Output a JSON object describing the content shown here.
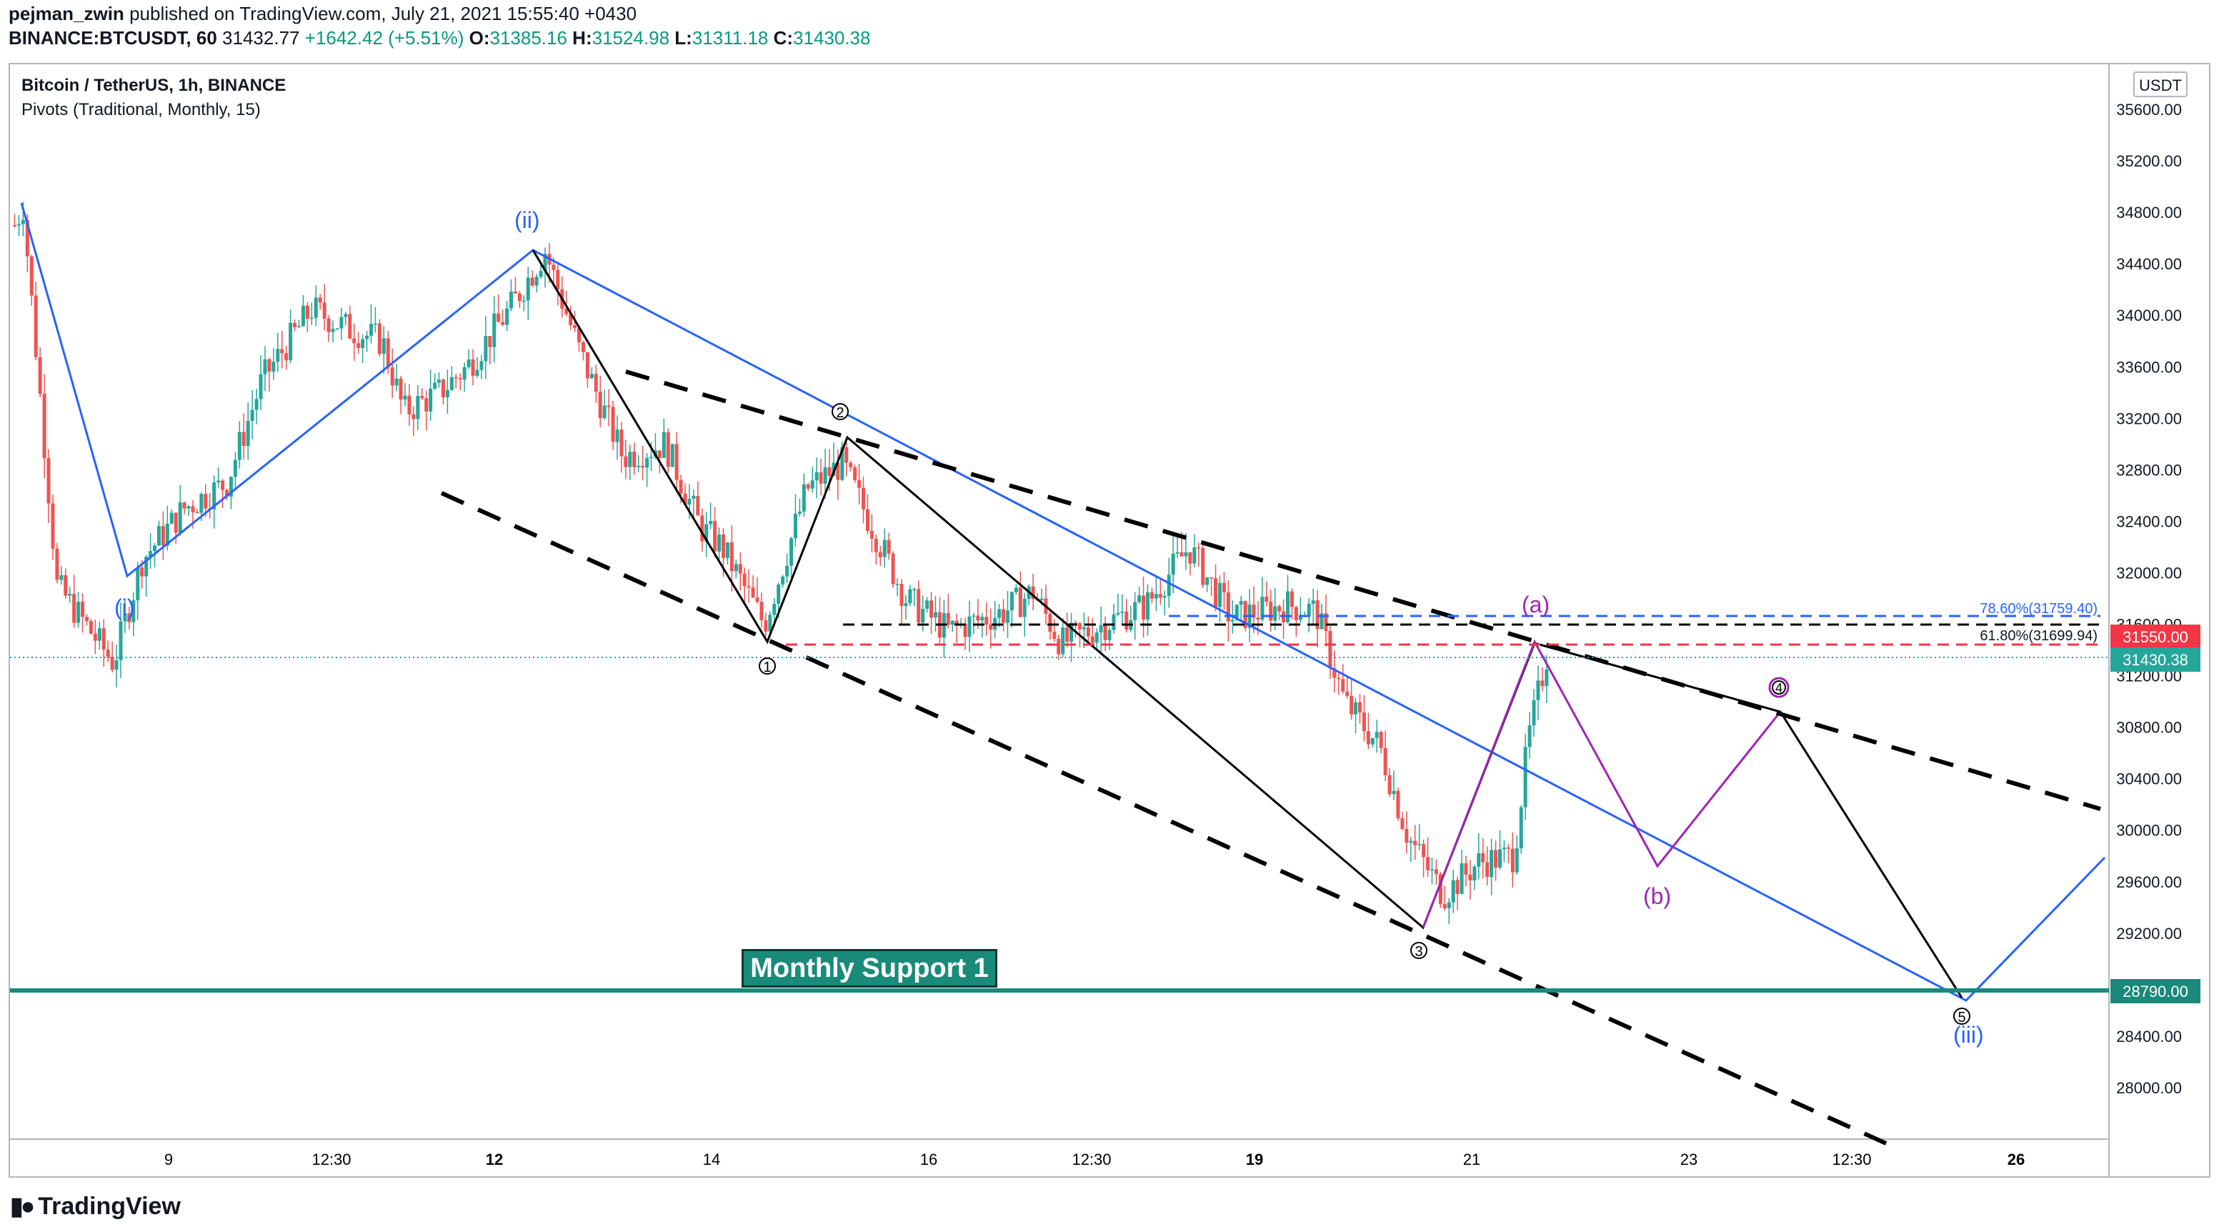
{
  "header": {
    "author": "pejman_zwin",
    "published_text": "published on TradingView.com, July 21, 2021 15:55:40 +0430",
    "symbol": "BINANCE:BTCUSDT, 60",
    "last": "31432.77",
    "change": "+1642.42 (+5.51%)",
    "o_label": "O:",
    "o_value": "31385.16",
    "h_label": "H:",
    "h_value": "31524.98",
    "l_label": "L:",
    "l_value": "31311.18",
    "c_label": "C:",
    "c_value": "31430.38"
  },
  "legend": {
    "title": "Bitcoin / TetherUS, 1h, BINANCE",
    "indicator": "Pivots (Traditional, Monthly, 15)"
  },
  "currency_badge": "USDT",
  "support_label": "Monthly Support 1",
  "wave_labels": {
    "i": "(i)",
    "ii": "(ii)",
    "iii": "(iii)",
    "a": "(a)",
    "b": "(b)",
    "w1": "1",
    "w2": "2",
    "w3": "3",
    "w4": "4",
    "w5": "5"
  },
  "fib_levels": {
    "f786": "78.60%(31759.40)",
    "f618": "61.80%(31699.94)"
  },
  "price_tags": {
    "pivot_level": "31550.00",
    "last_price": "31430.38",
    "support_level": "28790.00"
  },
  "colors": {
    "up": "#26a69a",
    "down": "#ef5350",
    "wave_blue": "#2962ff",
    "wave_purple": "#9c27b0",
    "support": "#1a8a7a"
  },
  "footer": {
    "brand": "TradingView"
  },
  "chart_data": {
    "type": "candlestick",
    "y_axis_ticks": [
      35600,
      35200,
      34800,
      34400,
      34000,
      33600,
      33200,
      32800,
      32400,
      32000,
      31600,
      31200,
      30800,
      30400,
      30000,
      29600,
      29200,
      28800,
      28400,
      28000
    ],
    "y_axis_labels": [
      "35600.00",
      "35200.00",
      "34800.00",
      "34400.00",
      "34000.00",
      "33600.00",
      "33200.00",
      "32800.00",
      "32400.00",
      "32000.00",
      "31600.00",
      "31200.00",
      "30800.00",
      "30400.00",
      "30000.00",
      "29600.00",
      "29200.00",
      "28800.00",
      "28400.00",
      "28000.00"
    ],
    "x_axis_labels": [
      "9",
      "12:30",
      "12",
      "14",
      "16",
      "12:30",
      "19",
      "21",
      "23",
      "12:30",
      "26"
    ],
    "x_axis_bold": [
      false,
      false,
      true,
      false,
      false,
      false,
      true,
      false,
      false,
      false,
      true
    ],
    "ylim": [
      27600,
      35950
    ],
    "key_levels": {
      "fib_786": 31759.4,
      "fib_618": 31699.94,
      "pivot_line": 31550.0,
      "last_price": 31430.38,
      "monthly_support_1": 28790.0
    },
    "candle_path": [
      [
        0,
        34700
      ],
      [
        6,
        34850
      ],
      [
        30,
        31900
      ],
      [
        70,
        31300
      ],
      [
        90,
        32100
      ],
      [
        120,
        32500
      ],
      [
        150,
        32700
      ],
      [
        175,
        33500
      ],
      [
        210,
        34050
      ],
      [
        235,
        33900
      ],
      [
        260,
        33800
      ],
      [
        275,
        33250
      ],
      [
        300,
        33400
      ],
      [
        320,
        33600
      ],
      [
        350,
        34050
      ],
      [
        375,
        34500
      ],
      [
        400,
        33700
      ],
      [
        430,
        32900
      ],
      [
        460,
        33000
      ],
      [
        485,
        32350
      ],
      [
        500,
        32200
      ],
      [
        530,
        31600
      ],
      [
        560,
        32650
      ],
      [
        585,
        32850
      ],
      [
        600,
        32500
      ],
      [
        630,
        31800
      ],
      [
        660,
        31550
      ],
      [
        700,
        31700
      ],
      [
        720,
        31850
      ],
      [
        740,
        31450
      ],
      [
        770,
        31600
      ],
      [
        800,
        31750
      ],
      [
        830,
        32200
      ],
      [
        860,
        31650
      ],
      [
        880,
        31700
      ],
      [
        900,
        31750
      ],
      [
        920,
        31700
      ],
      [
        940,
        31000
      ],
      [
        965,
        30650
      ],
      [
        985,
        29950
      ],
      [
        1010,
        29500
      ],
      [
        1035,
        29750
      ],
      [
        1060,
        29800
      ],
      [
        1070,
        30700
      ],
      [
        1085,
        31450
      ]
    ],
    "elliott_waves": {
      "blue_primary": [
        [
          "(i)",
          32100
        ],
        [
          "(ii)",
          34700
        ],
        [
          "(iii)",
          28700
        ]
      ],
      "black_minor": [
        [
          "1",
          31550
        ],
        [
          "2",
          33200
        ],
        [
          "3",
          29300
        ],
        [
          "4",
          30950
        ],
        [
          "5",
          28750
        ]
      ],
      "purple_corrective": [
        [
          "(a)",
          31550
        ],
        [
          "(b)",
          29800
        ]
      ]
    }
  }
}
